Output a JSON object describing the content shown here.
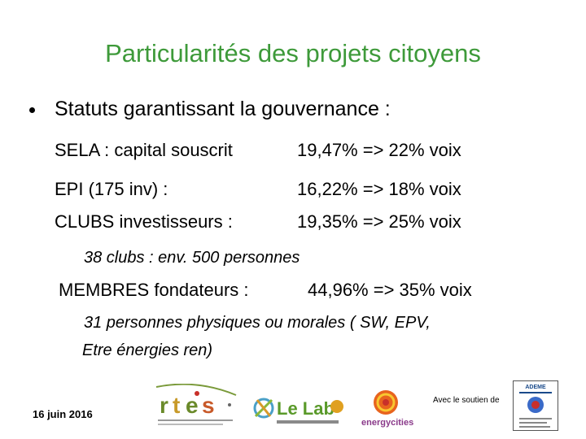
{
  "title": "Particularités des projets citoyens",
  "bullet": "Statuts garantissant la gouvernance :",
  "rows": [
    {
      "label": "SELA : capital souscrit",
      "value": "19,47% =>  22% voix"
    },
    {
      "label": "EPI (175 inv) :",
      "value": "16,22% =>  18% voix"
    },
    {
      "label": "CLUBS investisseurs :",
      "value": "19,35% =>   25% voix"
    }
  ],
  "clubs_note": "38 clubs : env. 500 personnes",
  "membres": {
    "label": "MEMBRES fondateurs :",
    "value": "44,96% =>  35% voix"
  },
  "membres_note_line1": "31 personnes physiques ou morales ( SW,  EPV,",
  "membres_note_line2": "Etre énergies ren)",
  "footer": {
    "date": "16 juin 2016",
    "soutien": "Avec le soutien de",
    "logos": {
      "rtes": "rtes",
      "lelab": "Le Lab",
      "energycities": "energycities",
      "ademe": "ADEME"
    }
  },
  "colors": {
    "title": "#3e9a3a"
  }
}
